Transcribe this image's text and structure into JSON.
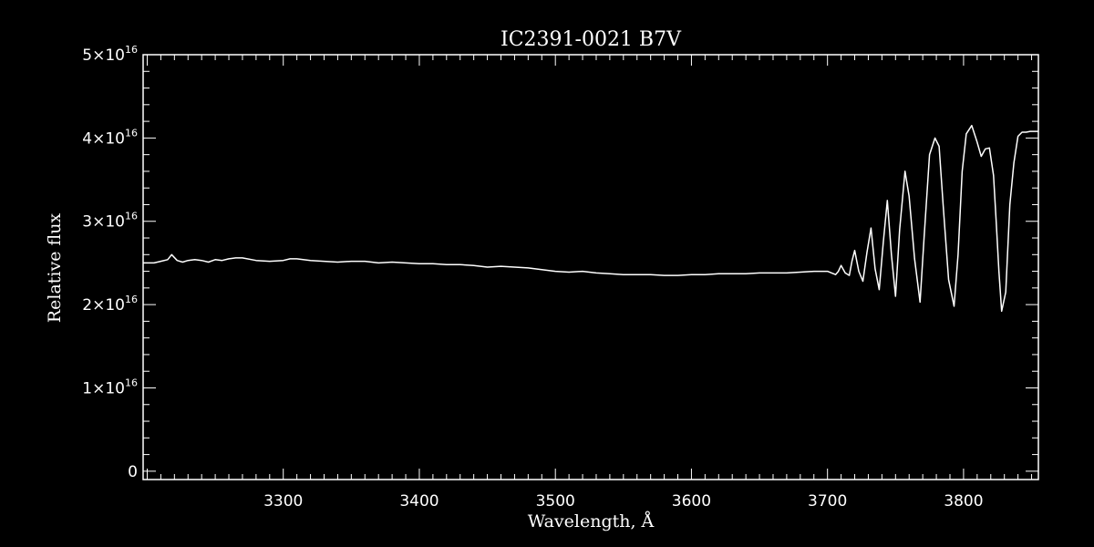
{
  "chart_data": {
    "type": "line",
    "title": "IC2391-0021   B7V",
    "xlabel": "Wavelength, Å",
    "ylabel": "Relative flux",
    "xlim": [
      3197,
      3855
    ],
    "ylim": [
      -0.1,
      5.0
    ],
    "y_scale_exponent": 16,
    "grid": false,
    "line_color": "#ffffff",
    "background_color": "#000000",
    "x_ticks": [
      {
        "value": 3300,
        "label": "3300"
      },
      {
        "value": 3400,
        "label": "3400"
      },
      {
        "value": 3500,
        "label": "3500"
      },
      {
        "value": 3600,
        "label": "3600"
      },
      {
        "value": 3700,
        "label": "3700"
      },
      {
        "value": 3800,
        "label": "3800"
      }
    ],
    "y_ticks": [
      {
        "value": 0,
        "mantissa": "0",
        "exponent": ""
      },
      {
        "value": 1,
        "mantissa": "1×10",
        "exponent": "16"
      },
      {
        "value": 2,
        "mantissa": "2×10",
        "exponent": "16"
      },
      {
        "value": 3,
        "mantissa": "3×10",
        "exponent": "16"
      },
      {
        "value": 4,
        "mantissa": "4×10",
        "exponent": "16"
      },
      {
        "value": 5,
        "mantissa": "5×10",
        "exponent": "16"
      }
    ],
    "series": [
      {
        "x": [
          3197,
          3205,
          3210,
          3215,
          3218,
          3222,
          3226,
          3230,
          3235,
          3240,
          3245,
          3250,
          3255,
          3260,
          3265,
          3270,
          3280,
          3290,
          3300,
          3305,
          3310,
          3320,
          3330,
          3340,
          3350,
          3360,
          3370,
          3380,
          3390,
          3400,
          3410,
          3420,
          3430,
          3440,
          3450,
          3460,
          3470,
          3480,
          3490,
          3500,
          3510,
          3520,
          3530,
          3540,
          3550,
          3560,
          3570,
          3580,
          3590,
          3600,
          3610,
          3620,
          3630,
          3640,
          3650,
          3660,
          3670,
          3680,
          3690,
          3695,
          3700,
          3703,
          3706,
          3708,
          3710,
          3713,
          3716,
          3718,
          3720,
          3723,
          3726,
          3729,
          3732,
          3735,
          3738,
          3741,
          3744,
          3747,
          3750,
          3753,
          3757,
          3760,
          3764,
          3768,
          3771,
          3775,
          3779,
          3782,
          3785,
          3789,
          3793,
          3796,
          3799,
          3802,
          3806,
          3810,
          3813,
          3816,
          3819,
          3822,
          3824,
          3826,
          3828,
          3831,
          3834,
          3837,
          3840,
          3843,
          3846,
          3849,
          3852,
          3855
        ],
        "y": [
          2.5,
          2.5,
          2.52,
          2.54,
          2.6,
          2.53,
          2.51,
          2.53,
          2.54,
          2.53,
          2.51,
          2.54,
          2.53,
          2.55,
          2.56,
          2.56,
          2.53,
          2.52,
          2.53,
          2.55,
          2.55,
          2.53,
          2.52,
          2.51,
          2.52,
          2.52,
          2.5,
          2.51,
          2.5,
          2.49,
          2.49,
          2.48,
          2.48,
          2.47,
          2.45,
          2.46,
          2.45,
          2.44,
          2.42,
          2.4,
          2.39,
          2.4,
          2.38,
          2.37,
          2.36,
          2.36,
          2.36,
          2.35,
          2.35,
          2.36,
          2.36,
          2.37,
          2.37,
          2.37,
          2.38,
          2.38,
          2.38,
          2.39,
          2.4,
          2.4,
          2.4,
          2.38,
          2.36,
          2.4,
          2.47,
          2.38,
          2.35,
          2.52,
          2.65,
          2.4,
          2.28,
          2.63,
          2.92,
          2.43,
          2.18,
          2.75,
          3.25,
          2.6,
          2.1,
          2.9,
          3.6,
          3.3,
          2.55,
          2.03,
          2.8,
          3.8,
          4.0,
          3.9,
          3.2,
          2.3,
          1.98,
          2.6,
          3.6,
          4.05,
          4.15,
          3.95,
          3.78,
          3.87,
          3.88,
          3.55,
          3.0,
          2.4,
          1.92,
          2.15,
          3.2,
          3.7,
          4.02,
          4.07,
          4.07,
          4.08,
          4.08,
          4.08
        ]
      }
    ]
  }
}
